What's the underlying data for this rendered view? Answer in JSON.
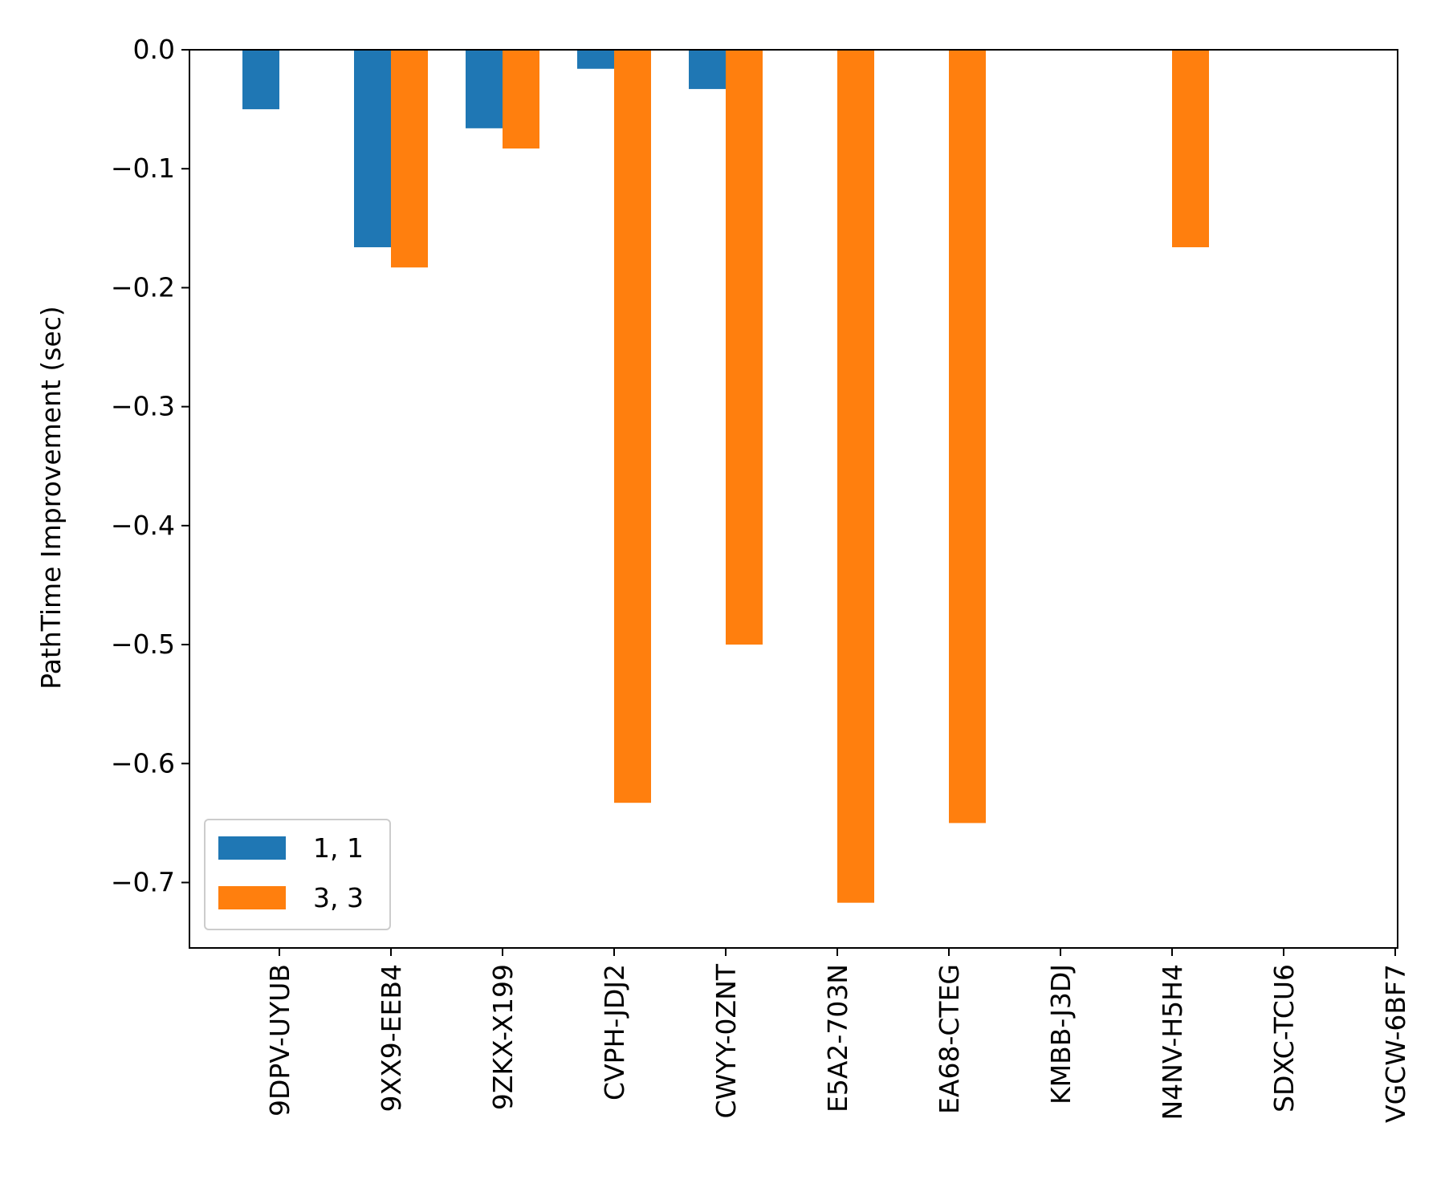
{
  "chart_data": {
    "type": "bar",
    "title": "",
    "xlabel": "",
    "ylabel": "PathTime Improvement (sec)",
    "ylim": [
      -0.755,
      0.0
    ],
    "yticks": [
      0.0,
      -0.1,
      -0.2,
      -0.3,
      -0.4,
      -0.5,
      -0.6,
      -0.7
    ],
    "ytick_labels": [
      "0.0",
      "−0.1",
      "−0.2",
      "−0.3",
      "−0.4",
      "−0.5",
      "−0.6",
      "−0.7"
    ],
    "categories": [
      "9DPV-UYUB",
      "9XX9-EEB4",
      "9ZKX-X199",
      "CVPH-JDJ2",
      "CWYY-0ZNT",
      "E5A2-703N",
      "EA68-CTEG",
      "KMBB-J3DJ",
      "N4NV-H5H4",
      "SDXC-TCU6",
      "VGCW-6BF7"
    ],
    "series": [
      {
        "name": "1, 1",
        "color": "#1f77b4",
        "values": [
          -0.05,
          -0.166,
          -0.066,
          -0.016,
          -0.033,
          null,
          null,
          null,
          null,
          null,
          null
        ]
      },
      {
        "name": "3, 3",
        "color": "#ff7f0e",
        "values": [
          null,
          -0.183,
          -0.083,
          -0.633,
          -0.5,
          -0.717,
          -0.65,
          null,
          -0.166,
          null,
          null
        ]
      }
    ],
    "legend": "lower-left",
    "grid": false
  }
}
